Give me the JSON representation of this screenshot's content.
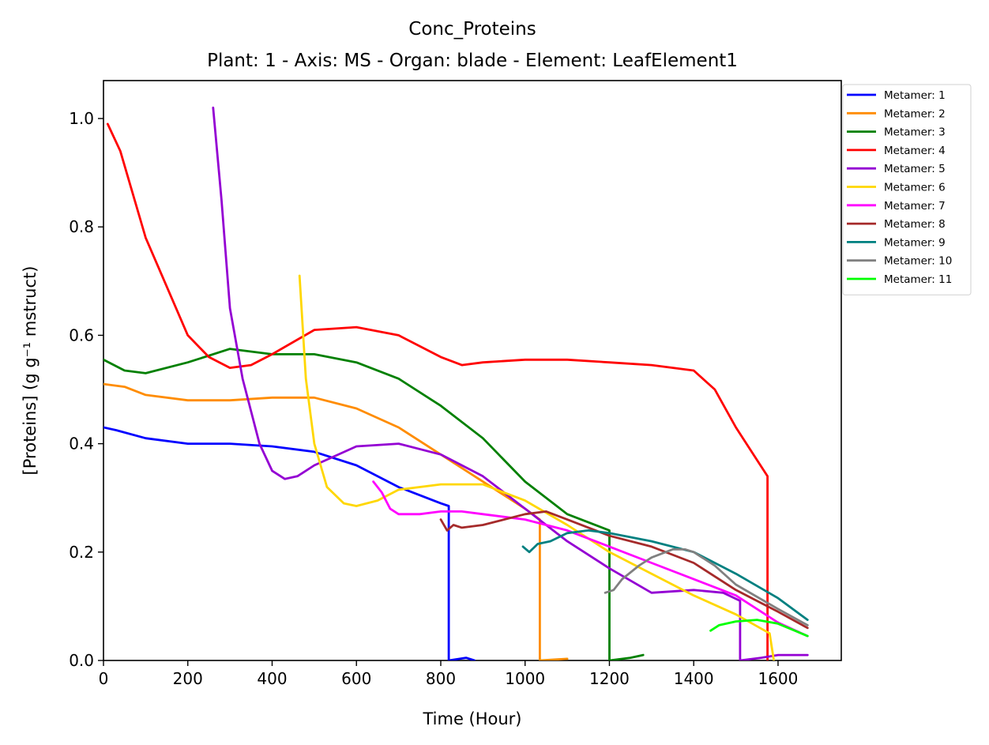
{
  "chart_data": {
    "type": "line",
    "title": "Conc_Proteins",
    "subtitle": "Plant: 1 - Axis: MS - Organ: blade - Element: LeafElement1",
    "xlabel": "Time (Hour)",
    "ylabel": "[Proteins] (g g⁻¹ mstruct)",
    "xlim": [
      0,
      1750
    ],
    "ylim": [
      0,
      1.07
    ],
    "xticks": [
      0,
      200,
      400,
      600,
      800,
      1000,
      1200,
      1400,
      1600
    ],
    "yticks": [
      "0.0",
      "0.2",
      "0.4",
      "0.6",
      "0.8",
      "1.0"
    ],
    "grid": false,
    "legend_position": "outside-top-right",
    "series": [
      {
        "name": "Metamer: 1",
        "color": "#0000ff",
        "x": [
          0,
          30,
          100,
          200,
          300,
          400,
          500,
          600,
          700,
          800,
          819,
          819,
          860,
          880
        ],
        "y": [
          0.43,
          0.425,
          0.41,
          0.4,
          0.4,
          0.395,
          0.385,
          0.36,
          0.32,
          0.29,
          0.285,
          0.0,
          0.005,
          0.0
        ]
      },
      {
        "name": "Metamer: 2",
        "color": "#ff8c00",
        "x": [
          0,
          50,
          100,
          200,
          300,
          400,
          500,
          600,
          700,
          800,
          900,
          1000,
          1035,
          1035,
          1100
        ],
        "y": [
          0.51,
          0.505,
          0.49,
          0.48,
          0.48,
          0.485,
          0.485,
          0.465,
          0.43,
          0.38,
          0.33,
          0.28,
          0.26,
          0.0,
          0.003
        ]
      },
      {
        "name": "Metamer: 3",
        "color": "#008000",
        "x": [
          0,
          50,
          100,
          200,
          300,
          350,
          400,
          500,
          600,
          700,
          800,
          900,
          1000,
          1100,
          1200,
          1200,
          1250,
          1280
        ],
        "y": [
          0.555,
          0.535,
          0.53,
          0.55,
          0.575,
          0.57,
          0.565,
          0.565,
          0.55,
          0.52,
          0.47,
          0.41,
          0.33,
          0.27,
          0.24,
          0.0,
          0.005,
          0.01
        ]
      },
      {
        "name": "Metamer: 4",
        "color": "#ff0000",
        "x": [
          10,
          40,
          100,
          200,
          250,
          300,
          350,
          400,
          500,
          600,
          700,
          800,
          850,
          900,
          1000,
          1100,
          1200,
          1300,
          1400,
          1450,
          1500,
          1550,
          1575,
          1575
        ],
        "y": [
          0.99,
          0.94,
          0.78,
          0.6,
          0.56,
          0.54,
          0.545,
          0.565,
          0.61,
          0.615,
          0.6,
          0.56,
          0.545,
          0.55,
          0.555,
          0.555,
          0.55,
          0.545,
          0.535,
          0.5,
          0.43,
          0.37,
          0.34,
          0.0
        ]
      },
      {
        "name": "Metamer: 5",
        "color": "#9400d3",
        "x": [
          260,
          280,
          300,
          330,
          370,
          400,
          430,
          460,
          500,
          600,
          700,
          800,
          900,
          1000,
          1100,
          1200,
          1300,
          1400,
          1470,
          1510,
          1510,
          1560,
          1600,
          1670
        ],
        "y": [
          1.02,
          0.85,
          0.65,
          0.52,
          0.4,
          0.35,
          0.335,
          0.34,
          0.36,
          0.395,
          0.4,
          0.38,
          0.34,
          0.28,
          0.22,
          0.17,
          0.125,
          0.13,
          0.125,
          0.11,
          0.0,
          0.005,
          0.01,
          0.01
        ]
      },
      {
        "name": "Metamer: 6",
        "color": "#ffd700",
        "x": [
          465,
          480,
          500,
          530,
          570,
          600,
          650,
          700,
          800,
          900,
          1000,
          1100,
          1200,
          1300,
          1400,
          1500,
          1580,
          1590
        ],
        "y": [
          0.71,
          0.52,
          0.4,
          0.32,
          0.29,
          0.285,
          0.295,
          0.315,
          0.325,
          0.325,
          0.295,
          0.25,
          0.2,
          0.16,
          0.12,
          0.085,
          0.05,
          0.0
        ]
      },
      {
        "name": "Metamer: 7",
        "color": "#ff00ff",
        "x": [
          640,
          660,
          680,
          700,
          750,
          800,
          850,
          900,
          1000,
          1100,
          1200,
          1300,
          1400,
          1500,
          1600,
          1670
        ],
        "y": [
          0.33,
          0.31,
          0.28,
          0.27,
          0.27,
          0.275,
          0.275,
          0.27,
          0.26,
          0.24,
          0.21,
          0.18,
          0.15,
          0.12,
          0.07,
          0.045
        ]
      },
      {
        "name": "Metamer: 8",
        "color": "#a52a2a",
        "x": [
          800,
          815,
          830,
          850,
          900,
          1000,
          1050,
          1100,
          1200,
          1300,
          1400,
          1500,
          1600,
          1670
        ],
        "y": [
          0.26,
          0.24,
          0.25,
          0.245,
          0.25,
          0.27,
          0.275,
          0.26,
          0.23,
          0.21,
          0.18,
          0.13,
          0.09,
          0.06
        ]
      },
      {
        "name": "Metamer: 9",
        "color": "#008080",
        "x": [
          995,
          1010,
          1030,
          1060,
          1100,
          1150,
          1200,
          1300,
          1400,
          1500,
          1600,
          1670
        ],
        "y": [
          0.21,
          0.2,
          0.215,
          0.22,
          0.235,
          0.24,
          0.235,
          0.22,
          0.2,
          0.16,
          0.115,
          0.075
        ]
      },
      {
        "name": "Metamer: 10",
        "color": "#808080",
        "x": [
          1190,
          1210,
          1230,
          1270,
          1300,
          1350,
          1380,
          1400,
          1450,
          1500,
          1600,
          1670
        ],
        "y": [
          0.125,
          0.13,
          0.15,
          0.175,
          0.19,
          0.205,
          0.205,
          0.2,
          0.175,
          0.14,
          0.095,
          0.065
        ]
      },
      {
        "name": "Metamer: 11",
        "color": "#00ff00",
        "x": [
          1440,
          1460,
          1500,
          1550,
          1600,
          1640,
          1670
        ],
        "y": [
          0.055,
          0.065,
          0.072,
          0.075,
          0.068,
          0.055,
          0.045
        ]
      }
    ]
  }
}
